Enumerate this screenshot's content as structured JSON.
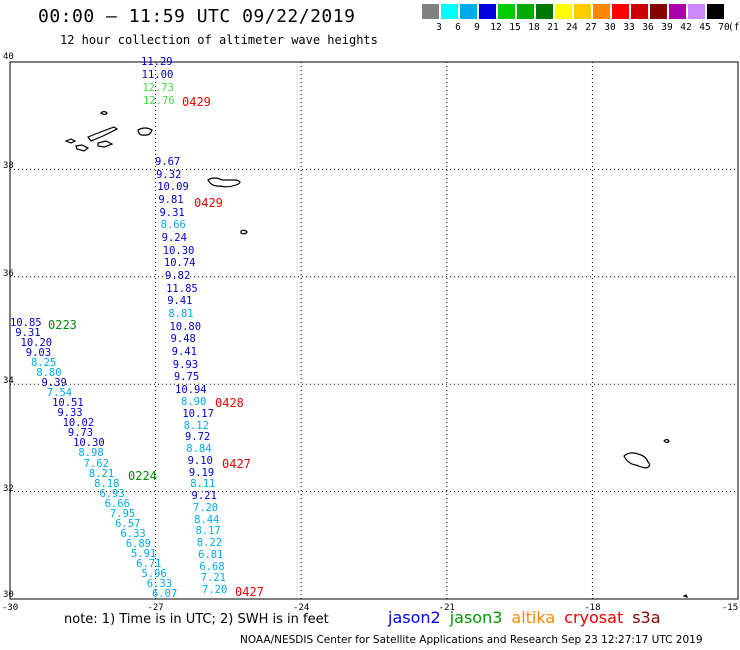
{
  "title": "00:00 – 11:59 UTC 09/22/2019",
  "subtitle": "12 hour collection of altimeter wave heights",
  "legend": {
    "unit": "(ft)",
    "bins": [
      {
        "label": "3",
        "color": "#808080"
      },
      {
        "label": "6",
        "color": "#00ffff"
      },
      {
        "label": "9",
        "color": "#00aaee"
      },
      {
        "label": "12",
        "color": "#0000dd"
      },
      {
        "label": "15",
        "color": "#00cc00"
      },
      {
        "label": "18",
        "color": "#00aa00"
      },
      {
        "label": "21",
        "color": "#007700"
      },
      {
        "label": "24",
        "color": "#ffff00"
      },
      {
        "label": "27",
        "color": "#ffcc00"
      },
      {
        "label": "30",
        "color": "#ff8800"
      },
      {
        "label": "33",
        "color": "#ff0000"
      },
      {
        "label": "36",
        "color": "#cc0000"
      },
      {
        "label": "39",
        "color": "#880000"
      },
      {
        "label": "42",
        "color": "#aa00aa"
      },
      {
        "label": "45",
        "color": "#cc88ff"
      },
      {
        "label": "70",
        "color": "#000000"
      }
    ]
  },
  "map": {
    "lon_range": [
      -30,
      -15
    ],
    "lat_range": [
      30,
      40
    ],
    "lon_ticks": [
      "-30",
      "-27",
      "-24",
      "-21",
      "-18",
      "-15"
    ],
    "lat_ticks": [
      "40",
      "38",
      "36",
      "34",
      "32",
      "30"
    ],
    "grid": "dotted"
  },
  "track_east": [
    {
      "v": "11.29",
      "c": "#0000cc"
    },
    {
      "v": "11.00",
      "c": "#0000cc"
    },
    {
      "v": "12.73",
      "c": "#44dd44"
    },
    {
      "v": "12.76",
      "c": "#44dd44"
    },
    {
      "v": "9.67",
      "c": "#0000cc"
    },
    {
      "v": "9.32",
      "c": "#0000cc"
    },
    {
      "v": "10.09",
      "c": "#0000cc"
    },
    {
      "v": "9.81",
      "c": "#0000cc"
    },
    {
      "v": "9.31",
      "c": "#0000cc"
    },
    {
      "v": "8.66",
      "c": "#00aaee"
    },
    {
      "v": "9.24",
      "c": "#0000cc"
    },
    {
      "v": "10.30",
      "c": "#0000cc"
    },
    {
      "v": "10.74",
      "c": "#0000cc"
    },
    {
      "v": "9.82",
      "c": "#0000cc"
    },
    {
      "v": "11.85",
      "c": "#0000cc"
    },
    {
      "v": "9.41",
      "c": "#0000cc"
    },
    {
      "v": "8.81",
      "c": "#00aaee"
    },
    {
      "v": "10.80",
      "c": "#0000cc"
    },
    {
      "v": "9.48",
      "c": "#0000cc"
    },
    {
      "v": "9.41",
      "c": "#0000cc"
    },
    {
      "v": "9.93",
      "c": "#0000cc"
    },
    {
      "v": "9.75",
      "c": "#0000cc"
    },
    {
      "v": "10.94",
      "c": "#0000cc"
    },
    {
      "v": "8.90",
      "c": "#00aaee"
    },
    {
      "v": "10.17",
      "c": "#0000cc"
    },
    {
      "v": "8.12",
      "c": "#00aaee"
    },
    {
      "v": "9.72",
      "c": "#0000cc"
    },
    {
      "v": "8.84",
      "c": "#00aaee"
    },
    {
      "v": "9.10",
      "c": "#0000cc"
    },
    {
      "v": "9.19",
      "c": "#0000cc"
    },
    {
      "v": "8.11",
      "c": "#00aaee"
    },
    {
      "v": "9.21",
      "c": "#0000cc"
    },
    {
      "v": "7.20",
      "c": "#00aaee"
    },
    {
      "v": "8.44",
      "c": "#00aaee"
    },
    {
      "v": "8.17",
      "c": "#00aaee"
    },
    {
      "v": "8.22",
      "c": "#00aaee"
    },
    {
      "v": "6.81",
      "c": "#00aaee"
    },
    {
      "v": "6.68",
      "c": "#00aaee"
    },
    {
      "v": "7.21",
      "c": "#00aaee"
    },
    {
      "v": "7.20",
      "c": "#00aaee"
    }
  ],
  "track_west": [
    {
      "v": "10.85",
      "c": "#0000cc"
    },
    {
      "v": "9.31",
      "c": "#0000cc"
    },
    {
      "v": "10.20",
      "c": "#0000cc"
    },
    {
      "v": "9.03",
      "c": "#0000cc"
    },
    {
      "v": "8.25",
      "c": "#00aaee"
    },
    {
      "v": "8.80",
      "c": "#00aaee"
    },
    {
      "v": "9.39",
      "c": "#0000cc"
    },
    {
      "v": "7.54",
      "c": "#00aaee"
    },
    {
      "v": "10.51",
      "c": "#0000cc"
    },
    {
      "v": "9.33",
      "c": "#0000cc"
    },
    {
      "v": "10.02",
      "c": "#0000cc"
    },
    {
      "v": "9.73",
      "c": "#0000cc"
    },
    {
      "v": "10.30",
      "c": "#0000cc"
    },
    {
      "v": "8.98",
      "c": "#00aaee"
    },
    {
      "v": "7.62",
      "c": "#00aaee"
    },
    {
      "v": "8.21",
      "c": "#00aaee"
    },
    {
      "v": "8.18",
      "c": "#00aaee"
    },
    {
      "v": "6.93",
      "c": "#00aaee"
    },
    {
      "v": "6.66",
      "c": "#00aaee"
    },
    {
      "v": "7.95",
      "c": "#00aaee"
    },
    {
      "v": "6.57",
      "c": "#00aaee"
    },
    {
      "v": "6.33",
      "c": "#00aaee"
    },
    {
      "v": "6.89",
      "c": "#00aaee"
    },
    {
      "v": "5.91",
      "c": "#00aaee"
    },
    {
      "v": "6.71",
      "c": "#00aaee"
    },
    {
      "v": "5.96",
      "c": "#00aaee"
    },
    {
      "v": "6.33",
      "c": "#00aaee"
    },
    {
      "v": "6.07",
      "c": "#00aaee"
    }
  ],
  "time_tags": [
    {
      "v": "0429",
      "c": "#ee0000"
    },
    {
      "v": "0429",
      "c": "#ee0000"
    },
    {
      "v": "0223",
      "c": "#008800"
    },
    {
      "v": "0428",
      "c": "#ee0000"
    },
    {
      "v": "0427",
      "c": "#ee0000"
    },
    {
      "v": "0224",
      "c": "#008800"
    },
    {
      "v": "0427",
      "c": "#ee0000"
    }
  ],
  "note": "note:  1) Time is in UTC;  2) SWH is in feet",
  "satellites": [
    {
      "name": "jason2",
      "color": "#0000ee"
    },
    {
      "name": "jason3",
      "color": "#009900"
    },
    {
      "name": "altika",
      "color": "#ff8800"
    },
    {
      "name": "cryosat",
      "color": "#ee0000"
    },
    {
      "name": "s3a",
      "color": "#880000"
    }
  ],
  "footer": "NOAA/NESDIS Center for Satellite Applications and Research     Sep 23 12:27:17 UTC 2019"
}
